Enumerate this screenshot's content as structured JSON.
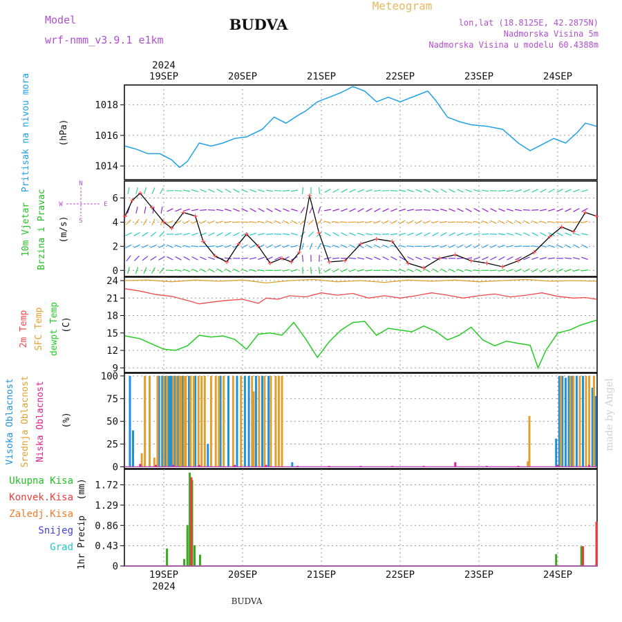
{
  "header": {
    "model_label": "Model",
    "model_name": "wrf-nmm_v3.9.1  e1km",
    "station": "BUDVA",
    "product": "Meteogram",
    "location_line": "lon,lat (18.8125E, 42.2875N)",
    "elevation_line": "Nadmorska Visina 5m",
    "model_elevation_line": "Nadmorska Visina u modelu 60.4388m",
    "year": "2024",
    "footer_station": "BUDVA",
    "credit": "made by Angel"
  },
  "colors": {
    "pressure": "#1ea0e6",
    "wind_legend": "#22c022",
    "wind_speed": "#000000",
    "wind_gust_marker": "#ff5050",
    "temp_2m": "#f04848",
    "temp_sfc": "#e0a030",
    "dewpoint": "#22cc22",
    "cloud_high": "#1e90e0",
    "cloud_mid": "#e0a030",
    "cloud_low": "#e0208a",
    "precip_total": "#3aa820",
    "precip_conv": "#ee3c3c",
    "precip_frozen": "#f07a2a",
    "precip_snow": "#4040e0",
    "precip_graupel": "#20c8c8",
    "model_text": "#b050d0",
    "product_text": "#e8b860"
  },
  "chart_data": [
    {
      "type": "line",
      "panel": "pressure",
      "ylabel_lines": [
        "Pritisak na nivou mora"
      ],
      "unit": "(hPa)",
      "yticks": [
        1014,
        1016,
        1018
      ],
      "ylim": [
        1013.1,
        1019.3
      ],
      "x_categories": [
        "19SEP",
        "20SEP",
        "21SEP",
        "22SEP",
        "23SEP",
        "24SEP"
      ],
      "series": [
        {
          "name": "Pritisak na nivou mora",
          "x": [
            -0.5,
            -0.35,
            -0.2,
            -0.05,
            0.1,
            0.2,
            0.3,
            0.45,
            0.6,
            0.75,
            0.9,
            1.05,
            1.25,
            1.4,
            1.55,
            1.7,
            1.8,
            1.95,
            2.1,
            2.25,
            2.4,
            2.55,
            2.7,
            2.85,
            3.0,
            3.2,
            3.35,
            3.45,
            3.6,
            3.75,
            3.9,
            4.1,
            4.3,
            4.5,
            4.65,
            4.8,
            4.95,
            5.1,
            5.25,
            5.35,
            5.5
          ],
          "values": [
            1015.3,
            1015.1,
            1014.8,
            1014.8,
            1014.4,
            1013.9,
            1014.3,
            1015.5,
            1015.3,
            1015.5,
            1015.8,
            1015.9,
            1016.4,
            1017.2,
            1016.8,
            1017.3,
            1017.6,
            1018.2,
            1018.5,
            1018.8,
            1019.2,
            1018.9,
            1018.2,
            1018.5,
            1018.2,
            1018.6,
            1018.9,
            1018.3,
            1017.2,
            1016.9,
            1016.7,
            1016.6,
            1016.4,
            1015.5,
            1015.0,
            1015.4,
            1015.8,
            1015.5,
            1016.2,
            1016.8,
            1016.6
          ]
        }
      ]
    },
    {
      "type": "line",
      "panel": "wind",
      "ylabel_lines": [
        "10m Vjetar",
        "Brzina i Pravac"
      ],
      "unit": "(m/s)",
      "yticks": [
        0,
        2,
        4,
        6
      ],
      "ylim": [
        -0.5,
        7.4
      ],
      "compass": {
        "n": "N",
        "s": "S",
        "e": "E",
        "w": "W"
      },
      "series": [
        {
          "name": "10m Vjetar",
          "x": [
            -0.5,
            -0.4,
            -0.3,
            -0.15,
            0.0,
            0.1,
            0.25,
            0.4,
            0.5,
            0.65,
            0.8,
            0.95,
            1.05,
            1.2,
            1.35,
            1.5,
            1.62,
            1.72,
            1.85,
            1.97,
            2.1,
            2.3,
            2.5,
            2.7,
            2.9,
            3.1,
            3.3,
            3.5,
            3.7,
            3.9,
            4.1,
            4.3,
            4.5,
            4.7,
            4.9,
            5.05,
            5.2,
            5.35,
            5.5
          ],
          "values": [
            4.5,
            5.8,
            6.4,
            5.2,
            4.0,
            3.5,
            4.8,
            4.5,
            2.4,
            1.2,
            0.7,
            2.2,
            3.0,
            2.0,
            0.6,
            1.0,
            0.7,
            1.5,
            6.2,
            3.1,
            0.7,
            0.8,
            2.2,
            2.6,
            2.4,
            0.6,
            0.2,
            1.0,
            1.3,
            0.8,
            0.6,
            0.3,
            0.8,
            1.5,
            2.8,
            3.6,
            3.2,
            4.8,
            4.5
          ]
        }
      ]
    },
    {
      "type": "line",
      "panel": "temperature",
      "ylabel_lines": [
        "2m Temp",
        "SFC Temp",
        "dewpt Temp"
      ],
      "unit": "(C)",
      "yticks": [
        9,
        12,
        15,
        18,
        21,
        24
      ],
      "ylim": [
        8.2,
        24.6
      ],
      "series": [
        {
          "name": "SFC Temp",
          "x": [
            -0.5,
            -0.2,
            0.1,
            0.4,
            0.7,
            1.0,
            1.3,
            1.6,
            1.9,
            2.2,
            2.5,
            2.8,
            3.1,
            3.4,
            3.7,
            4.0,
            4.3,
            4.6,
            4.9,
            5.2,
            5.5
          ],
          "values": [
            24.0,
            24.1,
            23.8,
            24.1,
            23.9,
            24.1,
            23.6,
            24.0,
            24.2,
            23.8,
            24.0,
            23.7,
            24.1,
            23.9,
            24.1,
            23.8,
            24.0,
            24.2,
            23.9,
            24.0,
            23.9
          ]
        },
        {
          "name": "2m Temp",
          "x": [
            -0.5,
            -0.3,
            -0.1,
            0.1,
            0.3,
            0.45,
            0.6,
            0.8,
            1.0,
            1.2,
            1.3,
            1.45,
            1.6,
            1.8,
            2.0,
            2.2,
            2.4,
            2.6,
            2.8,
            3.0,
            3.2,
            3.4,
            3.6,
            3.8,
            4.0,
            4.2,
            4.4,
            4.6,
            4.8,
            5.0,
            5.2,
            5.35,
            5.5
          ],
          "values": [
            22.6,
            22.2,
            21.6,
            21.3,
            20.6,
            20.0,
            20.3,
            20.6,
            20.8,
            20.1,
            21.0,
            20.8,
            21.4,
            21.2,
            21.9,
            21.5,
            21.8,
            21.0,
            21.4,
            21.0,
            21.4,
            21.9,
            21.5,
            21.0,
            21.4,
            21.7,
            21.2,
            21.5,
            21.9,
            21.3,
            21.0,
            21.1,
            20.8
          ]
        },
        {
          "name": "dewpt Temp",
          "x": [
            -0.5,
            -0.3,
            -0.15,
            0.0,
            0.15,
            0.3,
            0.45,
            0.6,
            0.75,
            0.9,
            1.05,
            1.2,
            1.35,
            1.5,
            1.65,
            1.8,
            1.95,
            2.1,
            2.25,
            2.4,
            2.55,
            2.7,
            2.85,
            3.0,
            3.15,
            3.3,
            3.45,
            3.6,
            3.75,
            3.9,
            4.05,
            4.2,
            4.35,
            4.5,
            4.65,
            4.75,
            4.85,
            5.0,
            5.15,
            5.3,
            5.5
          ],
          "values": [
            14.5,
            14.0,
            13.1,
            12.2,
            12.0,
            12.8,
            14.6,
            14.3,
            14.5,
            13.9,
            12.2,
            14.8,
            15.0,
            14.6,
            16.8,
            14.0,
            10.8,
            13.5,
            15.5,
            16.8,
            17.0,
            14.6,
            15.8,
            15.5,
            15.2,
            16.2,
            15.3,
            13.8,
            14.6,
            16.0,
            13.8,
            12.8,
            13.6,
            13.2,
            12.9,
            9.0,
            12.0,
            15.0,
            15.5,
            16.4,
            17.2
          ]
        }
      ]
    },
    {
      "type": "bar",
      "panel": "clouds",
      "ylabel_lines": [
        "Visoka Oblacnost",
        "Srednja Oblacnost",
        "Niska Oblacnost"
      ],
      "unit": "(%)",
      "yticks": [
        0,
        25,
        50,
        75,
        100
      ],
      "ylim": [
        -2,
        103
      ],
      "series": [
        {
          "name": "Visoka Oblacnost",
          "x": [
            -0.43,
            -0.39,
            -0.06,
            -0.02,
            0.02,
            0.06,
            0.08,
            0.1,
            0.14,
            0.18,
            0.24,
            0.32,
            0.4,
            0.56,
            0.72,
            0.82,
            0.93,
            1.03,
            1.08,
            1.17,
            1.25,
            1.33,
            1.63,
            4.98,
            5.02,
            5.06,
            5.1,
            5.14,
            5.18,
            5.24,
            5.32,
            5.44,
            5.48
          ],
          "values": [
            100,
            40,
            100,
            100,
            100,
            100,
            100,
            100,
            100,
            100,
            100,
            100,
            100,
            25,
            100,
            100,
            100,
            100,
            100,
            100,
            100,
            100,
            5,
            31,
            100,
            100,
            98,
            100,
            100,
            100,
            100,
            87,
            78
          ]
        },
        {
          "name": "Srednja Oblacnost",
          "x": [
            -0.28,
            -0.24,
            -0.18,
            -0.12,
            -0.08,
            0.0,
            0.04,
            0.12,
            0.16,
            0.2,
            0.22,
            0.26,
            0.28,
            0.34,
            0.38,
            0.44,
            0.48,
            0.52,
            0.6,
            0.66,
            0.7,
            0.76,
            0.88,
            0.98,
            1.12,
            1.14,
            1.21,
            1.28,
            1.36,
            1.42,
            1.46,
            1.5,
            4.62,
            4.64,
            5.04,
            5.16,
            5.2,
            5.28,
            5.36,
            5.4,
            5.46
          ],
          "values": [
            15,
            100,
            100,
            10,
            100,
            100,
            100,
            100,
            100,
            100,
            100,
            100,
            100,
            100,
            100,
            100,
            100,
            100,
            100,
            100,
            100,
            100,
            100,
            100,
            100,
            83,
            100,
            100,
            100,
            100,
            100,
            100,
            6,
            56,
            100,
            100,
            100,
            100,
            100,
            100,
            100
          ]
        },
        {
          "name": "Niska Oblacnost",
          "x": [
            -0.3,
            -0.1,
            0.12,
            0.45,
            0.9,
            1.3,
            1.7,
            2.1,
            2.5,
            2.9,
            3.3,
            3.7,
            4.1,
            4.5,
            5.0,
            5.4
          ],
          "values": [
            3,
            2,
            2,
            2,
            2,
            2,
            1,
            1,
            1,
            1,
            1,
            5,
            1,
            1,
            2,
            2
          ]
        }
      ]
    },
    {
      "type": "bar",
      "panel": "precipitation",
      "ylabel_lines": [
        "1hr Precip"
      ],
      "unit": "(mm)",
      "legend": [
        "Ukupna  Kisa",
        "Konvek.Kisa",
        "Zaledj.Kisa",
        "Snijeg",
        "Grad"
      ],
      "yticks": [
        0,
        0.43,
        0.86,
        1.29,
        1.72
      ],
      "ylim": [
        0,
        2.05
      ],
      "series": [
        {
          "name": "Ukupna  Kisa",
          "x": [
            0.04,
            0.26,
            0.3,
            0.33,
            0.36,
            0.39,
            0.46,
            4.98,
            5.3,
            5.49
          ],
          "values": [
            0.37,
            0.15,
            0.87,
            1.98,
            1.82,
            0.44,
            0.24,
            0.25,
            0.42,
            0.05
          ]
        },
        {
          "name": "Konvek.Kisa",
          "x": [
            0.35,
            5.32,
            5.51
          ],
          "values": [
            1.88,
            0.42,
            0.94
          ]
        }
      ]
    }
  ]
}
